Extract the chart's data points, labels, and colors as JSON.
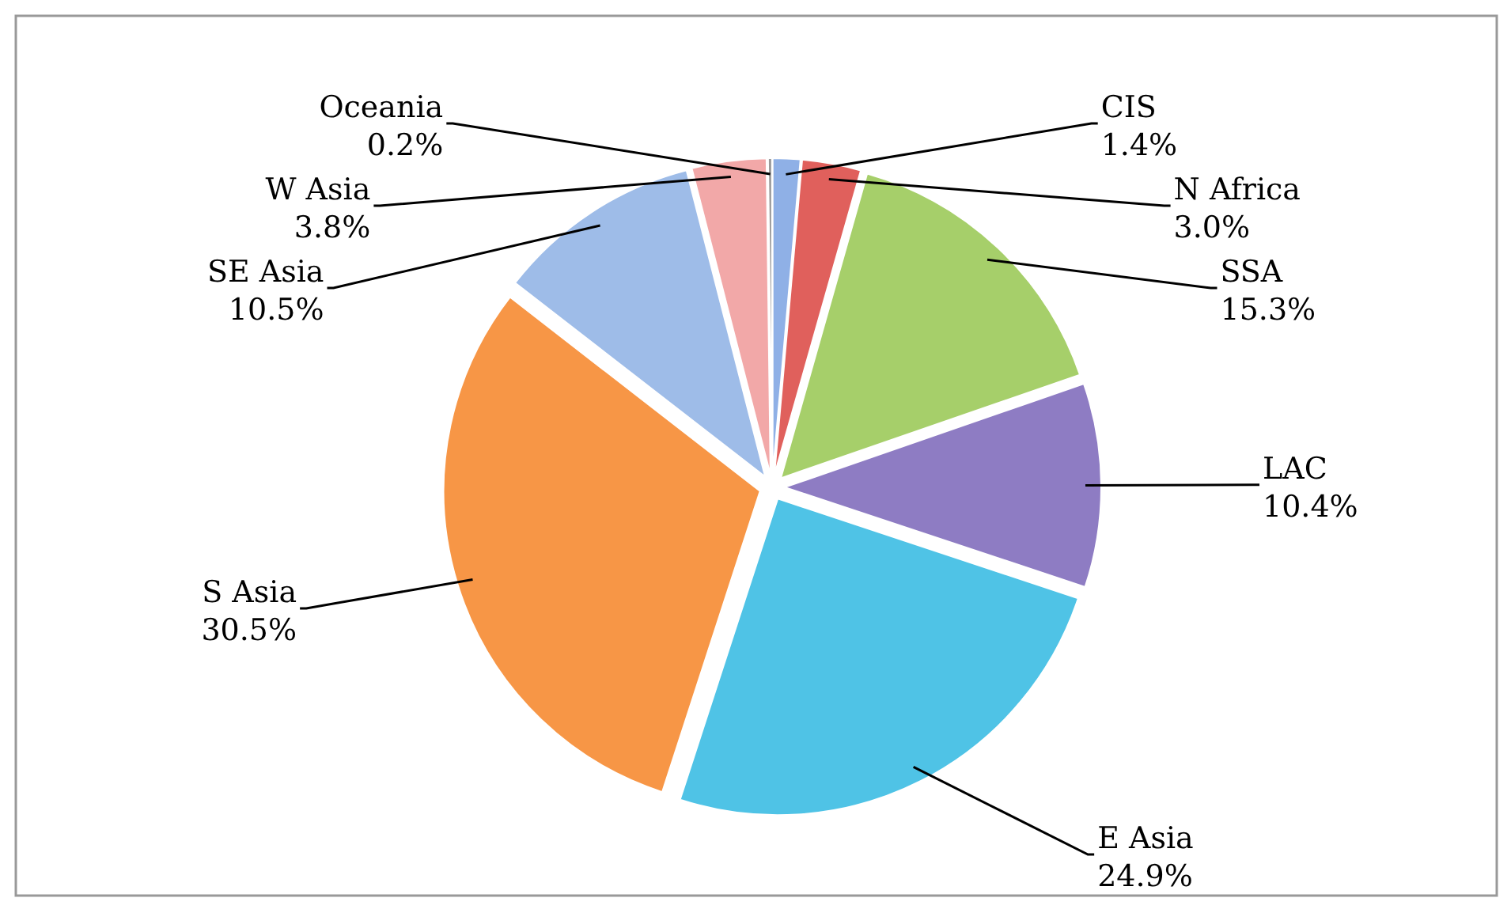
{
  "chart_data": {
    "type": "pie",
    "categories": [
      "CIS",
      "N Africa",
      "SSA",
      "LAC",
      "E Asia",
      "S Asia",
      "SE Asia",
      "W Asia",
      "Oceania"
    ],
    "values": [
      1.4,
      3.0,
      15.3,
      10.4,
      24.9,
      30.5,
      10.5,
      3.8,
      0.2
    ],
    "colors": [
      "#8fb0e6",
      "#e0605c",
      "#a6cf6a",
      "#8e7cc3",
      "#4fc3e6",
      "#f79646",
      "#9ebce8",
      "#f2a8a8",
      "#9a9a9a"
    ],
    "value_labels": [
      "1.4%",
      "3.0%",
      "15.3%",
      "10.4%",
      "24.9%",
      "30.5%",
      "10.5%",
      "3.8%",
      "0.2%"
    ]
  }
}
